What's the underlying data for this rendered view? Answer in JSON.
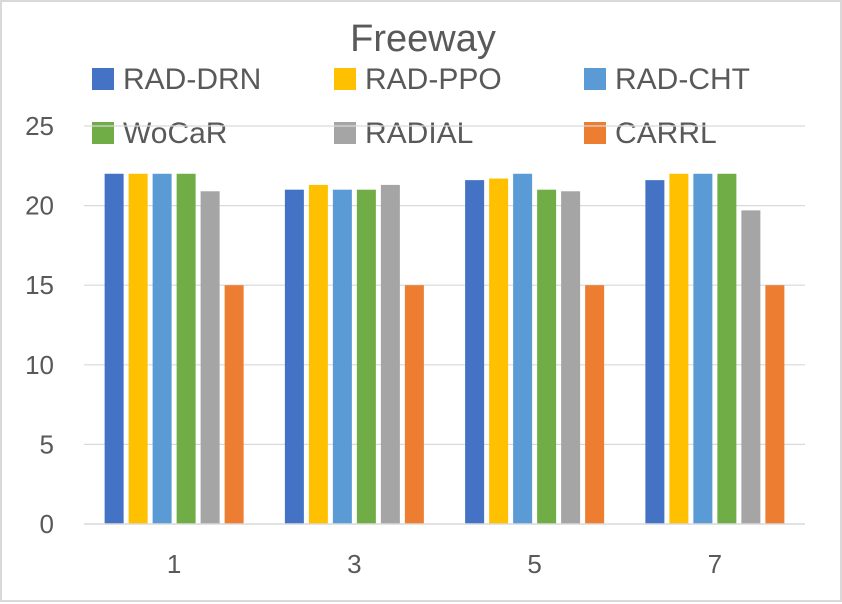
{
  "chart_data": {
    "type": "bar",
    "title": "Freeway",
    "xlabel": "",
    "ylabel": "",
    "categories": [
      "1",
      "3",
      "5",
      "7"
    ],
    "ylim": [
      0,
      25
    ],
    "yticks": [
      0,
      5,
      10,
      15,
      20,
      25
    ],
    "grid": true,
    "legend_position": "top",
    "series": [
      {
        "name": "RAD-DRN",
        "color": "#4472C4",
        "values": [
          22.0,
          21.0,
          21.6,
          21.6
        ]
      },
      {
        "name": "RAD-PPO",
        "color": "#FFC000",
        "values": [
          22.0,
          21.3,
          21.7,
          22.0
        ]
      },
      {
        "name": "RAD-CHT",
        "color": "#5B9BD5",
        "values": [
          22.0,
          21.0,
          22.0,
          22.0
        ]
      },
      {
        "name": "WoCaR",
        "color": "#70AD47",
        "values": [
          22.0,
          21.0,
          21.0,
          22.0
        ]
      },
      {
        "name": "RADIAL",
        "color": "#A5A5A5",
        "values": [
          20.9,
          21.3,
          20.9,
          19.7
        ]
      },
      {
        "name": "CARRL",
        "color": "#ED7D31",
        "values": [
          15.0,
          15.0,
          15.0,
          15.0
        ]
      }
    ]
  }
}
